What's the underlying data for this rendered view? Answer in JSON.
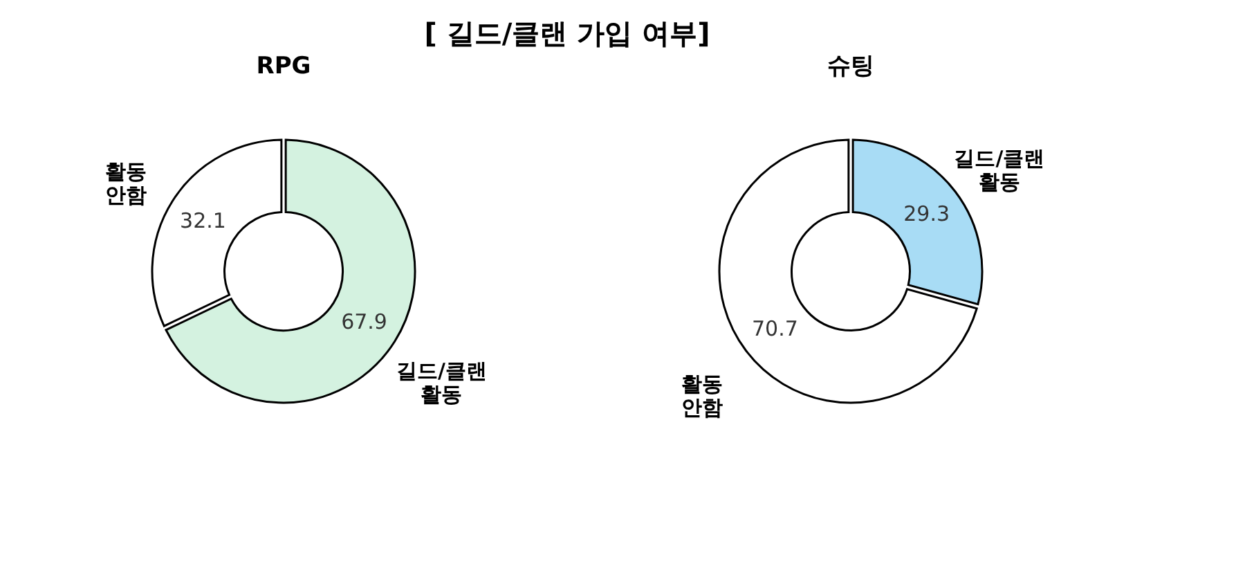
{
  "chart_data": [
    {
      "type": "donut",
      "title": "RPG",
      "annotations": [
        "[ 길드/클랜 가입 여부]"
      ],
      "categories": [
        "길드/클랜 활동",
        "활동 안함"
      ],
      "values": [
        67.9,
        32.1
      ],
      "colors": [
        "#d4f2e0",
        "#ffffff"
      ],
      "data_labels": true
    },
    {
      "type": "donut",
      "title": "슈팅",
      "categories": [
        "길드/클랜 활동",
        "활동 안함"
      ],
      "values": [
        29.3,
        70.7
      ],
      "colors": [
        "#a8dcf5",
        "#ffffff"
      ],
      "data_labels": true
    }
  ]
}
